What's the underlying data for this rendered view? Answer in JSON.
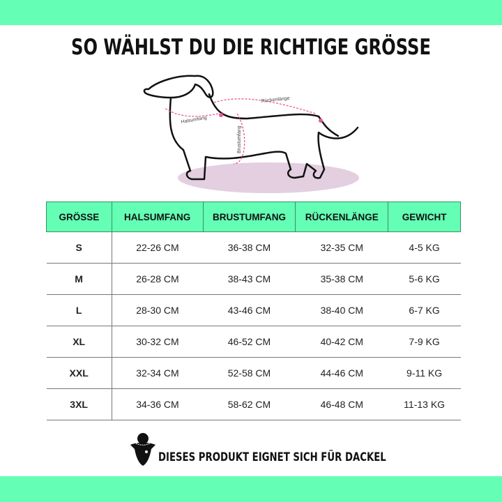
{
  "title": "SO WÄHLST DU DIE RICHTIGE GRÖSSE",
  "diagram": {
    "labels": {
      "neck": "Halsumfang",
      "chest": "Brustumfang",
      "back": "Rückenlänge"
    },
    "accent_color": "#e8589a"
  },
  "table": {
    "headers": [
      "GRÖSSE",
      "HALSUMFANG",
      "BRUSTUMFANG",
      "RÜCKENLÄNGE",
      "GEWICHT"
    ],
    "rows": [
      [
        "S",
        "22-26 CM",
        "36-38 CM",
        "32-35 CM",
        "4-5 KG"
      ],
      [
        "M",
        "26-28 CM",
        "38-43 CM",
        "35-38 CM",
        "5-6 KG"
      ],
      [
        "L",
        "28-30 CM",
        "43-46 CM",
        "38-40 CM",
        "6-7 KG"
      ],
      [
        "XL",
        "30-32 CM",
        "46-52 CM",
        "40-42 CM",
        "7-9 KG"
      ],
      [
        "XXL",
        "32-34 CM",
        "52-58 CM",
        "44-46 CM",
        "9-11 KG"
      ],
      [
        "3XL",
        "34-36 CM",
        "58-62 CM",
        "46-48 CM",
        "11-13 KG"
      ]
    ]
  },
  "footer": {
    "text": "DIESES PRODUKT EIGNET SICH FÜR DACKEL",
    "icon": "dachshund-logo-icon"
  },
  "colors": {
    "accent": "#64ffb4"
  }
}
